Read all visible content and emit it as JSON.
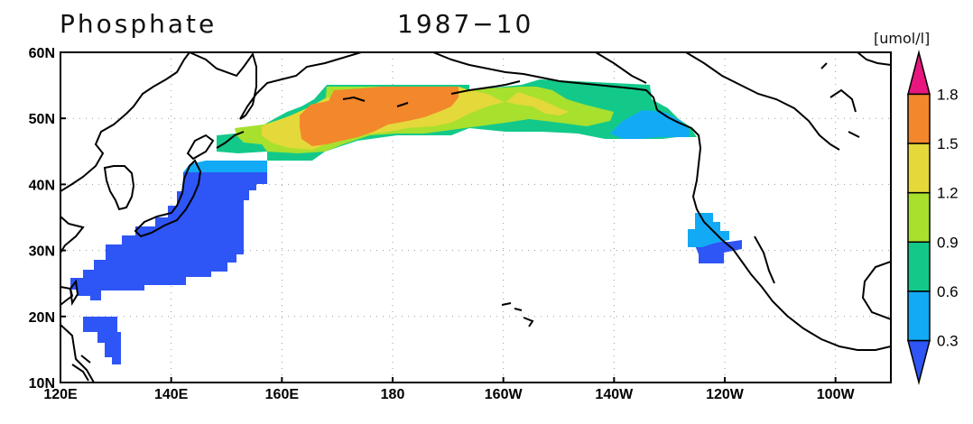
{
  "title": {
    "variable": "Phosphate",
    "date": "1987−10"
  },
  "units": "[umol/l]",
  "map": {
    "lon_range": [
      120,
      270
    ],
    "lat_range": [
      10,
      60
    ],
    "lon_ticks": [
      "120E",
      "140E",
      "160E",
      "180",
      "160W",
      "140W",
      "120W",
      "100W"
    ],
    "lat_ticks": [
      "10N",
      "20N",
      "30N",
      "40N",
      "50N",
      "60N"
    ],
    "grid_lines": true,
    "coastlines": true
  },
  "colorbar": {
    "levels": [
      "0.3",
      "0.6",
      "0.9",
      "1.2",
      "1.5",
      "1.8"
    ],
    "colors": [
      "#2e55f5",
      "#12aaf5",
      "#13c98a",
      "#a8e02e",
      "#e4d83a",
      "#f2872b",
      "#e8167f"
    ],
    "extend": "both"
  }
}
